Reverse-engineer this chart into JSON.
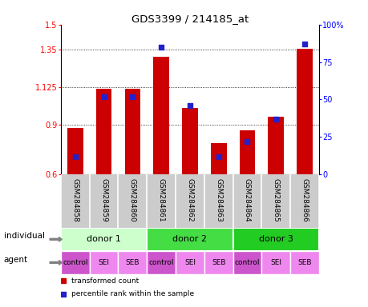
{
  "title": "GDS3399 / 214185_at",
  "samples": [
    "GSM284858",
    "GSM284859",
    "GSM284860",
    "GSM284861",
    "GSM284862",
    "GSM284863",
    "GSM284864",
    "GSM284865",
    "GSM284866"
  ],
  "transformed_count": [
    0.88,
    1.115,
    1.115,
    1.305,
    1.0,
    0.79,
    0.865,
    0.945,
    1.355
  ],
  "percentile_rank": [
    12,
    52,
    52,
    85,
    46,
    12,
    22,
    37,
    87
  ],
  "ylim_left": [
    0.6,
    1.5
  ],
  "ylim_right": [
    0,
    100
  ],
  "yticks_left": [
    0.6,
    0.9,
    1.125,
    1.35,
    1.5
  ],
  "ytick_labels_left": [
    "0.6",
    "0.9",
    "1.125",
    "1.35",
    "1.5"
  ],
  "yticks_right": [
    0,
    25,
    50,
    75,
    100
  ],
  "ytick_labels_right": [
    "0",
    "25",
    "50",
    "75",
    "100%"
  ],
  "hlines": [
    0.9,
    1.125,
    1.35
  ],
  "bar_color": "#cc0000",
  "dot_color": "#2222cc",
  "bar_width": 0.55,
  "individuals": [
    {
      "label": "donor 1",
      "span": [
        0,
        3
      ],
      "color": "#ccffcc"
    },
    {
      "label": "donor 2",
      "span": [
        3,
        6
      ],
      "color": "#44dd44"
    },
    {
      "label": "donor 3",
      "span": [
        6,
        9
      ],
      "color": "#22cc22"
    }
  ],
  "agents": [
    {
      "label": "control",
      "color": "#cc55cc"
    },
    {
      "label": "SEI",
      "color": "#ee88ee"
    },
    {
      "label": "SEB",
      "color": "#ee88ee"
    },
    {
      "label": "control",
      "color": "#cc55cc"
    },
    {
      "label": "SEI",
      "color": "#ee88ee"
    },
    {
      "label": "SEB",
      "color": "#ee88ee"
    },
    {
      "label": "control",
      "color": "#cc55cc"
    },
    {
      "label": "SEI",
      "color": "#ee88ee"
    },
    {
      "label": "SEB",
      "color": "#ee88ee"
    }
  ],
  "legend_items": [
    {
      "label": "transformed count",
      "color": "#cc0000"
    },
    {
      "label": "percentile rank within the sample",
      "color": "#2222cc"
    }
  ],
  "individual_label": "individual",
  "agent_label": "agent",
  "background_color": "#ffffff",
  "sample_bg_color": "#cccccc"
}
